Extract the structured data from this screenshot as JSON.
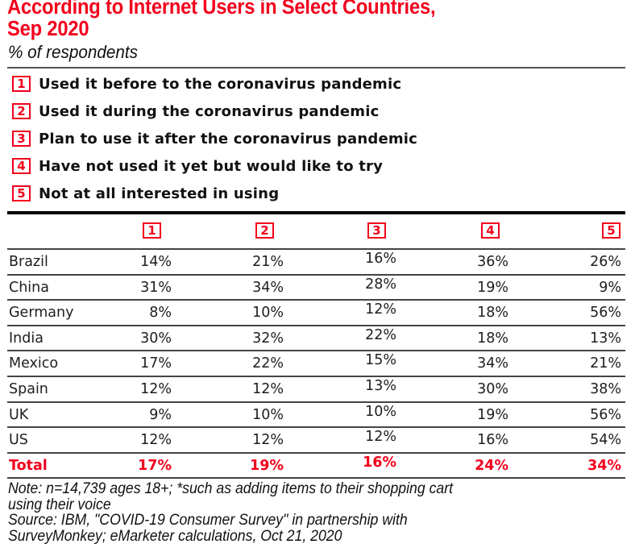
{
  "header": {
    "title_line1": "According to Internet Users in Select Countries,",
    "title_line2": "Sep 2020",
    "subtitle": "% of respondents"
  },
  "legend": [
    {
      "badge": "1",
      "label": "Used it before to the coronavirus pandemic"
    },
    {
      "badge": "2",
      "label": "Used it during the coronavirus pandemic"
    },
    {
      "badge": "3",
      "label": "Plan to use it after the coronavirus pandemic"
    },
    {
      "badge": "4",
      "label": "Have not used it yet but would like to try"
    },
    {
      "badge": "5",
      "label": "Not at all interested in using"
    }
  ],
  "colors": {
    "accent_red": "#f2001c",
    "text": "#1e1e1e"
  },
  "chart_data": {
    "type": "table",
    "title": "According to Internet Users in Select Countries, Sep 2020",
    "subtitle": "% of respondents",
    "columns": [
      "1",
      "2",
      "3",
      "4",
      "5"
    ],
    "column_labels": [
      "Used it before to the coronavirus pandemic",
      "Used it during the coronavirus pandemic",
      "Plan to use it after the coronavirus pandemic",
      "Have not used it yet but would like to try",
      "Not at all interested in using"
    ],
    "rows": [
      {
        "country": "Brazil",
        "values": [
          "14%",
          "21%",
          "16%",
          "36%",
          "26%"
        ]
      },
      {
        "country": "China",
        "values": [
          "31%",
          "34%",
          "28%",
          "19%",
          "9%"
        ]
      },
      {
        "country": "Germany",
        "values": [
          "8%",
          "10%",
          "12%",
          "18%",
          "56%"
        ]
      },
      {
        "country": "India",
        "values": [
          "30%",
          "32%",
          "22%",
          "18%",
          "13%"
        ]
      },
      {
        "country": "Mexico",
        "values": [
          "17%",
          "22%",
          "15%",
          "34%",
          "21%"
        ]
      },
      {
        "country": "Spain",
        "values": [
          "12%",
          "12%",
          "13%",
          "30%",
          "38%"
        ]
      },
      {
        "country": "UK",
        "values": [
          "9%",
          "10%",
          "10%",
          "19%",
          "56%"
        ]
      },
      {
        "country": "US",
        "values": [
          "12%",
          "12%",
          "12%",
          "16%",
          "54%"
        ]
      }
    ],
    "total": {
      "country": "Total",
      "values": [
        "17%",
        "19%",
        "16%",
        "24%",
        "34%"
      ]
    },
    "series": [
      {
        "name": "Used it before to the coronavirus pandemic",
        "values": [
          14,
          31,
          8,
          30,
          17,
          12,
          9,
          12
        ]
      },
      {
        "name": "Used it during the coronavirus pandemic",
        "values": [
          21,
          34,
          10,
          32,
          22,
          12,
          10,
          12
        ]
      },
      {
        "name": "Plan to use it after the coronavirus pandemic",
        "values": [
          16,
          28,
          12,
          22,
          15,
          13,
          10,
          12
        ]
      },
      {
        "name": "Have not used it yet but would like to try",
        "values": [
          36,
          19,
          18,
          18,
          34,
          30,
          19,
          16
        ]
      },
      {
        "name": "Not at all interested in using",
        "values": [
          26,
          9,
          56,
          13,
          21,
          38,
          56,
          54
        ]
      }
    ],
    "categories": [
      "Brazil",
      "China",
      "Germany",
      "India",
      "Mexico",
      "Spain",
      "UK",
      "US"
    ],
    "totals": [
      17,
      19,
      16,
      24,
      34
    ]
  },
  "notes": {
    "line1": "Note: n=14,739 ages 18+; *such as adding items to their shopping cart",
    "line2": "using their voice",
    "line3": "Source: IBM, \"COVID-19 Consumer Survey\" in partnership with",
    "line4": "SurveyMonkey; eMarketer calculations, Oct 21, 2020"
  }
}
